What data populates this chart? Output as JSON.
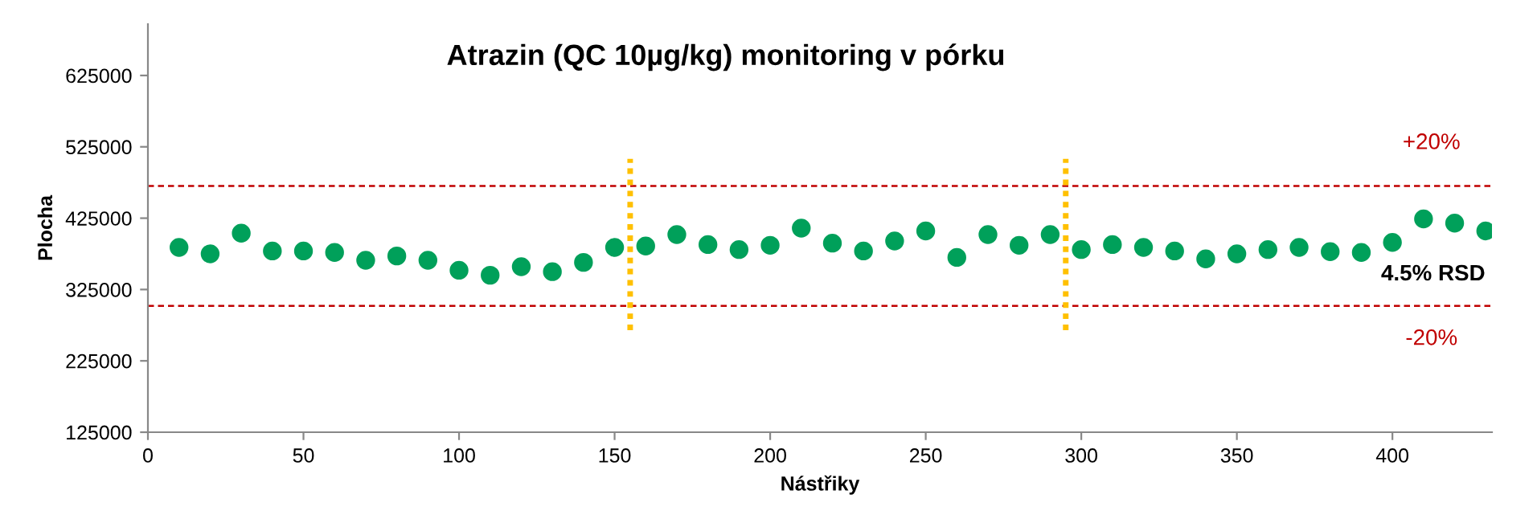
{
  "chart_data": {
    "type": "scatter",
    "title": "Atrazin (QC 10µg/kg) monitoring v pórku",
    "xlabel": "Nástřiky",
    "ylabel": "Plocha",
    "x": [
      10,
      20,
      30,
      40,
      50,
      60,
      70,
      80,
      90,
      100,
      110,
      120,
      130,
      140,
      150,
      160,
      170,
      180,
      190,
      200,
      210,
      220,
      230,
      240,
      250,
      260,
      270,
      280,
      290,
      300,
      310,
      320,
      330,
      340,
      350,
      360,
      370,
      380,
      390,
      400,
      410,
      420,
      430
    ],
    "series": [
      {
        "color": "#00a05a",
        "values": [
          384000,
          375000,
          404000,
          379000,
          379000,
          377000,
          366000,
          372000,
          366000,
          352000,
          345000,
          357000,
          350000,
          363000,
          384000,
          386000,
          402000,
          388000,
          381000,
          387000,
          411000,
          390000,
          379000,
          393000,
          407000,
          370000,
          402000,
          387000,
          402000,
          381000,
          388000,
          384000,
          379000,
          368000,
          375000,
          381000,
          384000,
          378000,
          377000,
          391000,
          424000,
          418000,
          407000
        ]
      }
    ],
    "xlim": [
      0,
      432
    ],
    "ylim": [
      125000,
      697000
    ],
    "xticks": [
      0,
      50,
      100,
      150,
      200,
      250,
      300,
      350,
      400
    ],
    "yticks": [
      125000,
      225000,
      325000,
      425000,
      525000,
      625000
    ],
    "ref_lines": [
      {
        "axis": "y",
        "value": 470000,
        "color": "#c00000",
        "line_style": "dashed"
      },
      {
        "axis": "y",
        "value": 302000,
        "color": "#c00000",
        "line_style": "dashed"
      },
      {
        "axis": "x",
        "value": 155,
        "color": "#ffc000",
        "line_style": "dotted"
      },
      {
        "axis": "x",
        "value": 295,
        "color": "#ffc000",
        "line_style": "dotted"
      }
    ],
    "annotations": [
      "+20%",
      "4.5% RSD",
      "-20%"
    ],
    "marker": "circle",
    "grid": false,
    "legend": false
  }
}
